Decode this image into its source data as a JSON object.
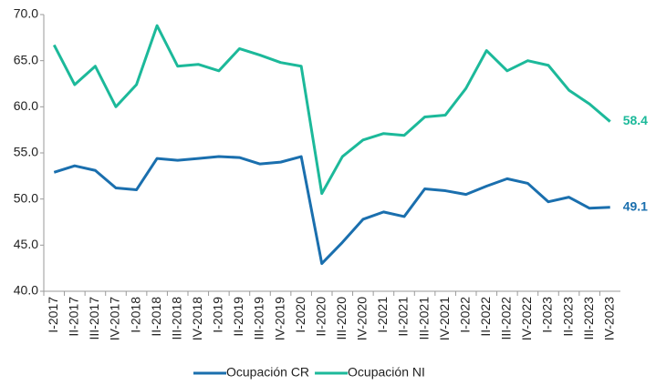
{
  "chart_data": {
    "type": "line",
    "categories": [
      "I-2017",
      "II-2017",
      "III-2017",
      "IV-2017",
      "I-2018",
      "II-2018",
      "III-2018",
      "IV-2018",
      "I-2019",
      "II-2019",
      "III-2019",
      "IV-2019",
      "I-2020",
      "II-2020",
      "III-2020",
      "IV-2020",
      "I-2021",
      "II-2021",
      "III-2021",
      "IV-2021",
      "I-2022",
      "II-2022",
      "III-2022",
      "IV-2022",
      "I-2023",
      "II-2023",
      "III-2023",
      "IV-2023"
    ],
    "series": [
      {
        "name": "Ocupación CR",
        "color": "#1a6fae",
        "values": [
          52.9,
          53.6,
          53.1,
          51.2,
          51.0,
          54.4,
          54.2,
          54.4,
          54.6,
          54.5,
          53.8,
          54.0,
          54.6,
          43.0,
          45.3,
          47.8,
          48.6,
          48.1,
          51.1,
          50.9,
          50.5,
          51.4,
          52.2,
          51.7,
          49.7,
          50.2,
          49.0,
          49.1
        ]
      },
      {
        "name": "Ocupación NI",
        "color": "#1cb99a",
        "values": [
          66.7,
          62.4,
          64.4,
          60.0,
          62.4,
          68.8,
          64.4,
          64.6,
          63.9,
          66.3,
          65.6,
          64.8,
          64.4,
          50.6,
          54.6,
          56.4,
          57.1,
          56.9,
          58.9,
          59.1,
          62.0,
          66.1,
          63.9,
          65.0,
          64.5,
          61.8,
          60.3,
          58.4
        ]
      }
    ],
    "ylim": [
      40,
      70
    ],
    "yticks": [
      {
        "value": 40,
        "label": "40.0"
      },
      {
        "value": 45,
        "label": "45.0"
      },
      {
        "value": 50,
        "label": "50.0"
      },
      {
        "value": 55,
        "label": "55.0"
      },
      {
        "value": 60,
        "label": "60.0"
      },
      {
        "value": 65,
        "label": "65.0"
      },
      {
        "value": 70,
        "label": "70.0"
      }
    ],
    "grid": false,
    "legend": "bottom"
  }
}
